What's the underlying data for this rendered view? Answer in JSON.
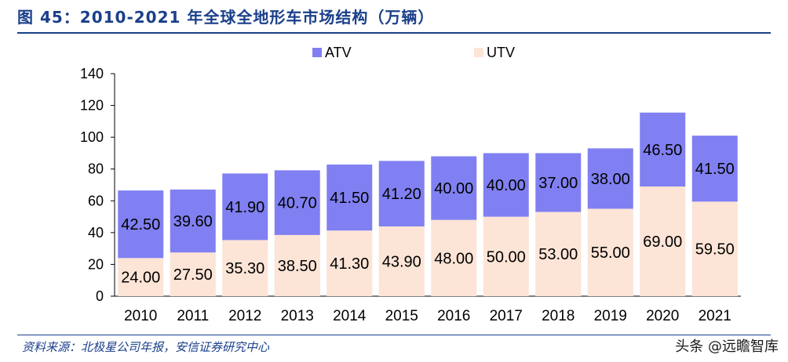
{
  "title": "图 45：2010-2021 年全球全地形车市场结构（万辆）",
  "source": "资料来源：北极星公司年报，安信证券研究中心",
  "watermark": "头条 @远瞻智库",
  "colors": {
    "ATV": "#8080f2",
    "UTV": "#fce4d6",
    "brand": "#1a3f8a"
  },
  "chart_data": {
    "type": "bar",
    "stacked": true,
    "categories": [
      "2010",
      "2011",
      "2012",
      "2013",
      "2014",
      "2015",
      "2016",
      "2017",
      "2018",
      "2019",
      "2020",
      "2021"
    ],
    "series": [
      {
        "name": "UTV",
        "values": [
          24.0,
          27.5,
          35.3,
          38.5,
          41.3,
          43.9,
          48.0,
          50.0,
          53.0,
          55.0,
          69.0,
          59.5
        ],
        "labels": [
          "24.00",
          "27.50",
          "35.30",
          "38.50",
          "41.30",
          "43.90",
          "48.00",
          "50.00",
          "53.00",
          "55.00",
          "69.00",
          "59.50"
        ]
      },
      {
        "name": "ATV",
        "values": [
          42.5,
          39.6,
          41.9,
          40.7,
          41.5,
          41.2,
          40.0,
          40.0,
          37.0,
          38.0,
          46.5,
          41.5
        ],
        "labels": [
          "42.50",
          "39.60",
          "41.90",
          "40.70",
          "41.50",
          "41.20",
          "40.00",
          "40.00",
          "37.00",
          "38.00",
          "46.50",
          "41.50"
        ]
      }
    ],
    "legend": [
      "ATV",
      "UTV"
    ],
    "ylim": [
      0,
      140
    ],
    "yticks": [
      "0",
      "20",
      "40",
      "60",
      "80",
      "100",
      "120",
      "140"
    ],
    "legend_position": "top"
  }
}
